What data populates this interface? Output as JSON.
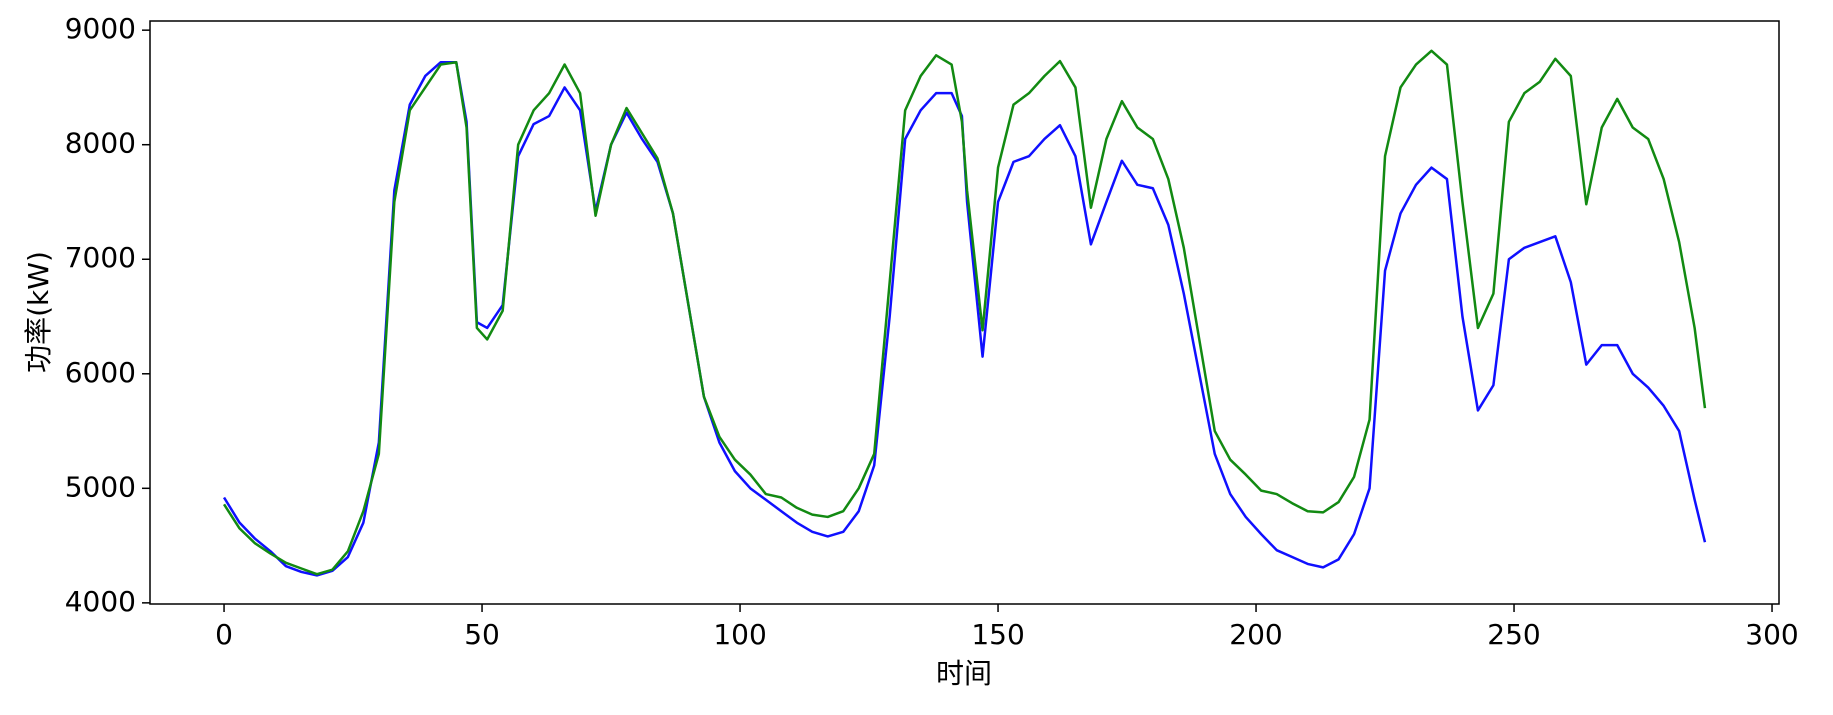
{
  "chart_data": {
    "type": "line",
    "xlabel": "时间",
    "ylabel": "功率(kW)",
    "x": [
      0,
      3,
      6,
      9,
      12,
      15,
      18,
      21,
      24,
      27,
      30,
      33,
      36,
      39,
      42,
      45,
      47,
      49,
      51,
      54,
      57,
      60,
      63,
      66,
      69,
      72,
      75,
      78,
      81,
      84,
      87,
      90,
      93,
      96,
      99,
      102,
      105,
      108,
      111,
      114,
      117,
      120,
      123,
      126,
      129,
      132,
      135,
      138,
      141,
      143,
      144,
      147,
      150,
      153,
      156,
      159,
      162,
      165,
      168,
      171,
      174,
      177,
      180,
      183,
      186,
      189,
      192,
      195,
      198,
      201,
      204,
      207,
      210,
      213,
      216,
      219,
      222,
      225,
      228,
      231,
      234,
      237,
      240,
      243,
      246,
      249,
      252,
      255,
      258,
      261,
      264,
      267,
      270,
      273,
      276,
      279,
      282,
      285,
      287
    ],
    "series": [
      {
        "color": "#1010ff",
        "values": [
          4920,
          4700,
          4560,
          4450,
          4320,
          4270,
          4240,
          4280,
          4400,
          4700,
          5400,
          7600,
          8350,
          8600,
          8720,
          8720,
          8200,
          6450,
          6400,
          6600,
          7900,
          8180,
          8250,
          8500,
          8300,
          7420,
          8000,
          8280,
          8050,
          7850,
          7400,
          6600,
          5800,
          5400,
          5150,
          5000,
          4900,
          4800,
          4700,
          4620,
          4580,
          4620,
          4800,
          5200,
          6500,
          8050,
          8300,
          8450,
          8450,
          8250,
          7500,
          6150,
          7500,
          7850,
          7900,
          8050,
          8170,
          7900,
          7130,
          7500,
          7860,
          7650,
          7620,
          7300,
          6700,
          6000,
          5300,
          4950,
          4750,
          4600,
          4460,
          4400,
          4340,
          4310,
          4380,
          4600,
          5000,
          6900,
          7400,
          7650,
          7800,
          7700,
          6500,
          5680,
          5900,
          7000,
          7100,
          7150,
          7200,
          6800,
          6080,
          6250,
          6250,
          6000,
          5880,
          5720,
          5500,
          4900,
          4530
        ]
      },
      {
        "color": "#128a12",
        "values": [
          4860,
          4650,
          4520,
          4430,
          4350,
          4300,
          4250,
          4290,
          4450,
          4800,
          5300,
          7500,
          8300,
          8500,
          8700,
          8720,
          8150,
          6400,
          6300,
          6550,
          8000,
          8300,
          8450,
          8700,
          8450,
          7380,
          8000,
          8320,
          8100,
          7880,
          7400,
          6600,
          5800,
          5450,
          5250,
          5120,
          4950,
          4920,
          4830,
          4770,
          4750,
          4800,
          5000,
          5300,
          6800,
          8300,
          8600,
          8780,
          8700,
          8200,
          7600,
          6380,
          7800,
          8350,
          8450,
          8600,
          8730,
          8500,
          7450,
          8050,
          8380,
          8150,
          8050,
          7700,
          7100,
          6300,
          5500,
          5250,
          5120,
          4980,
          4950,
          4870,
          4800,
          4790,
          4880,
          5100,
          5600,
          7900,
          8500,
          8700,
          8820,
          8700,
          7500,
          6400,
          6700,
          8200,
          8450,
          8550,
          8750,
          8600,
          7480,
          8150,
          8400,
          8150,
          8050,
          7700,
          7150,
          6400,
          5700
        ]
      }
    ],
    "xlim": [
      -14.35,
      301.35
    ],
    "xticks": [
      0,
      50,
      100,
      150,
      200,
      250,
      300
    ],
    "ylim": [
      3990,
      9080
    ],
    "yticks": [
      4000,
      5000,
      6000,
      7000,
      8000,
      9000
    ]
  }
}
